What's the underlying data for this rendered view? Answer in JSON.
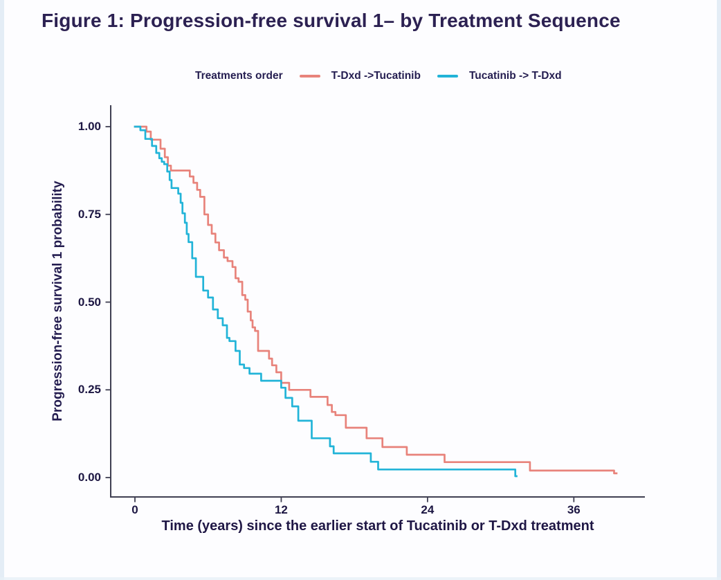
{
  "figure": {
    "title": "Figure 1: Progression-free survival 1– by Treatment Sequence"
  },
  "chart_data": {
    "type": "line",
    "variant": "kaplan-meier-step",
    "title": "Figure 1: Progression-free survival 1– by Treatment Sequence",
    "legend_title": "Treatments order",
    "legend_position": "top",
    "xlabel": "Time (years) since the earlier start of Tucatinib or T-Dxd treatment",
    "ylabel": "Progression-free survival 1 probability",
    "xticks": [
      0,
      12,
      24,
      36
    ],
    "yticks": [
      1.0,
      0.75,
      0.5,
      0.25,
      0.0
    ],
    "ytick_labels": [
      "1.00",
      "0.75",
      "0.50",
      "0.25",
      "0.00"
    ],
    "xlim": [
      -2,
      41.8
    ],
    "ylim": [
      0,
      1.05
    ],
    "grid": false,
    "axis_color": "#3f3f52",
    "text_color": "#241d50",
    "series": [
      {
        "name": "T-Dxd ->Tucatinib",
        "color": "#e8837b",
        "end_t": 39.5,
        "points": [
          [
            0,
            1.0
          ],
          [
            0.95,
            0.986
          ],
          [
            1.3,
            0.963
          ],
          [
            2.1,
            0.937
          ],
          [
            2.45,
            0.913
          ],
          [
            2.7,
            0.889
          ],
          [
            2.95,
            0.875
          ],
          [
            4.5,
            0.858
          ],
          [
            4.8,
            0.84
          ],
          [
            5.1,
            0.82
          ],
          [
            5.35,
            0.8
          ],
          [
            5.7,
            0.75
          ],
          [
            6.0,
            0.72
          ],
          [
            6.3,
            0.695
          ],
          [
            6.6,
            0.67
          ],
          [
            6.9,
            0.648
          ],
          [
            7.3,
            0.627
          ],
          [
            7.6,
            0.617
          ],
          [
            8.0,
            0.6
          ],
          [
            8.25,
            0.568
          ],
          [
            8.5,
            0.558
          ],
          [
            8.8,
            0.52
          ],
          [
            9.05,
            0.507
          ],
          [
            9.25,
            0.473
          ],
          [
            9.5,
            0.448
          ],
          [
            9.65,
            0.428
          ],
          [
            9.85,
            0.418
          ],
          [
            10.1,
            0.361
          ],
          [
            11.0,
            0.339
          ],
          [
            11.25,
            0.32
          ],
          [
            11.6,
            0.3
          ],
          [
            12.0,
            0.27
          ],
          [
            12.65,
            0.25
          ],
          [
            14.4,
            0.23
          ],
          [
            15.8,
            0.207
          ],
          [
            16.15,
            0.187
          ],
          [
            16.45,
            0.178
          ],
          [
            17.3,
            0.142
          ],
          [
            19.0,
            0.112
          ],
          [
            20.3,
            0.087
          ],
          [
            22.3,
            0.065
          ],
          [
            25.4,
            0.044
          ],
          [
            32.4,
            0.02
          ],
          [
            39.3,
            0.012
          ]
        ]
      },
      {
        "name": "Tucatinib -> T-Dxd",
        "color": "#22b4d8",
        "end_t": 31.3,
        "points": [
          [
            0,
            1.0
          ],
          [
            0.45,
            0.99
          ],
          [
            0.85,
            0.965
          ],
          [
            1.4,
            0.945
          ],
          [
            1.75,
            0.925
          ],
          [
            2.0,
            0.91
          ],
          [
            2.2,
            0.9
          ],
          [
            2.4,
            0.893
          ],
          [
            2.65,
            0.872
          ],
          [
            2.85,
            0.848
          ],
          [
            3.0,
            0.825
          ],
          [
            3.55,
            0.809
          ],
          [
            3.75,
            0.783
          ],
          [
            3.9,
            0.753
          ],
          [
            4.1,
            0.726
          ],
          [
            4.25,
            0.694
          ],
          [
            4.4,
            0.671
          ],
          [
            4.7,
            0.625
          ],
          [
            5.0,
            0.572
          ],
          [
            5.6,
            0.533
          ],
          [
            6.0,
            0.513
          ],
          [
            6.4,
            0.479
          ],
          [
            6.8,
            0.454
          ],
          [
            7.2,
            0.434
          ],
          [
            7.55,
            0.398
          ],
          [
            7.75,
            0.389
          ],
          [
            8.25,
            0.361
          ],
          [
            8.6,
            0.322
          ],
          [
            8.95,
            0.312
          ],
          [
            9.4,
            0.296
          ],
          [
            10.35,
            0.276
          ],
          [
            12.0,
            0.256
          ],
          [
            12.35,
            0.227
          ],
          [
            12.9,
            0.203
          ],
          [
            13.4,
            0.162
          ],
          [
            14.5,
            0.112
          ],
          [
            16.0,
            0.089
          ],
          [
            16.3,
            0.069
          ],
          [
            19.35,
            0.045
          ],
          [
            19.95,
            0.023
          ],
          [
            31.2,
            0.004
          ]
        ]
      }
    ]
  }
}
